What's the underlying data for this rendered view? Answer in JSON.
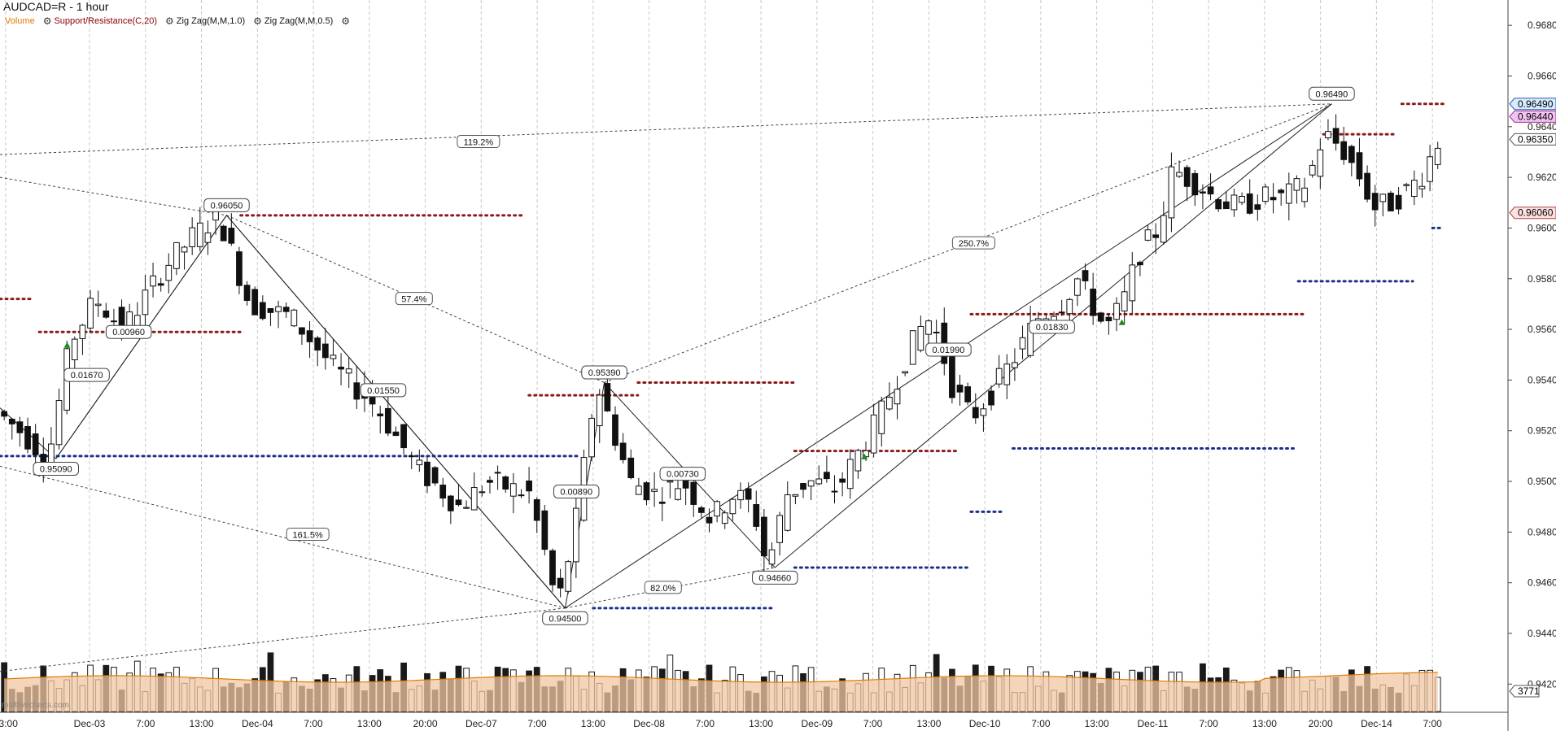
{
  "header": {
    "symbol_title": "AUDCAD=R - 1 hour",
    "indicators": [
      {
        "label": "Volume",
        "color": "#e07b00",
        "icon": "gear-icon"
      },
      {
        "label": "Support/Resistance(C,20)",
        "color": "#8b0000",
        "icon": "gear-icon"
      },
      {
        "label": "Zig Zag(M,M,1.0)",
        "color": "#111111",
        "icon": "gear-icon"
      },
      {
        "label": "Zig Zag(M,M,0.5)",
        "color": "#111111",
        "icon": "gear-icon"
      }
    ],
    "settings_icon": "gear-icon"
  },
  "watermark": "msftlivecharts.com",
  "chart_data": {
    "type": "candlestick",
    "title": "AUDCAD=R - 1 hour",
    "y_axis": {
      "ticks": [
        "0.96800",
        "0.96600",
        "0.96400",
        "0.96200",
        "0.96000",
        "0.95800",
        "0.95600",
        "0.95400",
        "0.95200",
        "0.95000",
        "0.94800",
        "0.94600",
        "0.94400",
        "0.94200"
      ],
      "range": [
        0.9414,
        0.969
      ],
      "price_tags": [
        {
          "value": "0.96490",
          "bg": "#d6ecff",
          "border": "#2a5db0",
          "color": "#000000"
        },
        {
          "value": "0.96440",
          "bg": "#f3c2f3",
          "border": "#a0308f",
          "color": "#000000"
        },
        {
          "value": "0.96350",
          "bg": "#ffffff",
          "border": "#555555",
          "color": "#000000"
        },
        {
          "value": "0.96060",
          "bg": "#fde0e0",
          "border": "#b04040",
          "color": "#000000"
        }
      ],
      "volume_tag": "3771"
    },
    "x_axis": {
      "ticks": [
        {
          "label": "13:00",
          "x": 0
        },
        {
          "label": "Dec-03",
          "x": 3
        },
        {
          "label": "7:00",
          "x": 5
        },
        {
          "label": "13:00",
          "x": 7
        },
        {
          "label": "Dec-04",
          "x": 9
        },
        {
          "label": "7:00",
          "x": 11
        },
        {
          "label": "13:00",
          "x": 13
        },
        {
          "label": "20:00",
          "x": 15
        },
        {
          "label": "Dec-07",
          "x": 17
        },
        {
          "label": "7:00",
          "x": 19
        },
        {
          "label": "13:00",
          "x": 21
        },
        {
          "label": "Dec-08",
          "x": 23
        },
        {
          "label": "7:00",
          "x": 25
        },
        {
          "label": "13:00",
          "x": 27
        },
        {
          "label": "Dec-09",
          "x": 29
        },
        {
          "label": "7:00",
          "x": 31
        },
        {
          "label": "13:00",
          "x": 33
        },
        {
          "label": "Dec-10",
          "x": 35
        },
        {
          "label": "7:00",
          "x": 37
        },
        {
          "label": "13:00",
          "x": 39
        },
        {
          "label": "Dec-11",
          "x": 41
        },
        {
          "label": "7:00",
          "x": 43
        },
        {
          "label": "13:00",
          "x": 45
        },
        {
          "label": "20:00",
          "x": 47
        },
        {
          "label": "Dec-14",
          "x": 49
        },
        {
          "label": "7:00",
          "x": 51
        }
      ],
      "range": [
        -0.2,
        53.7
      ]
    },
    "grid": true,
    "candles_note": "approximate hourly OHLC readings at ~0.28-unit spacing",
    "zigzag_major": [
      {
        "x": 1.8,
        "price": 0.9509,
        "label": "0.95090"
      },
      {
        "x": 7.9,
        "price": 0.9605,
        "label": "0.96050"
      },
      {
        "x": 20.0,
        "price": 0.945,
        "label": "0.94500"
      },
      {
        "x": 47.4,
        "price": 0.9649,
        "label": "0.96490"
      }
    ],
    "zigzag_minor": [
      {
        "x": -0.2,
        "price": 0.9529
      },
      {
        "x": 1.8,
        "price": 0.9509
      },
      {
        "x": 7.9,
        "price": 0.9605
      },
      {
        "x": 20.0,
        "price": 0.945
      },
      {
        "x": 21.4,
        "price": 0.9539,
        "label": "0.95390"
      },
      {
        "x": 27.5,
        "price": 0.9466,
        "label": "0.94660"
      },
      {
        "x": 47.4,
        "price": 0.9649
      }
    ],
    "swing_labels": [
      {
        "x": 2.9,
        "price": 0.9542,
        "text": "0.01670"
      },
      {
        "x": 4.4,
        "price": 0.9559,
        "text": "0.00960"
      },
      {
        "x": 13.5,
        "price": 0.9536,
        "text": "0.01550"
      },
      {
        "x": 20.4,
        "price": 0.9496,
        "text": "0.00890"
      },
      {
        "x": 24.2,
        "price": 0.9503,
        "text": "0.00730"
      },
      {
        "x": 33.7,
        "price": 0.9552,
        "text": "0.01990"
      },
      {
        "x": 37.4,
        "price": 0.9561,
        "text": "0.01830"
      }
    ],
    "retracements": [
      {
        "from": [
          -0.2,
          0.9629
        ],
        "to": [
          47.4,
          0.9649
        ],
        "label": "119.2%",
        "lx": 16.9,
        "lprice": 0.9634
      },
      {
        "from": [
          -0.2,
          0.962
        ],
        "to": [
          7.9,
          0.9605
        ],
        "label": "",
        "lx": null,
        "lprice": null
      },
      {
        "from": [
          7.9,
          0.9605
        ],
        "to": [
          21.4,
          0.9539
        ],
        "label": "57.4%",
        "lx": 14.6,
        "lprice": 0.9572
      },
      {
        "from": [
          -0.2,
          0.9506
        ],
        "to": [
          20.0,
          0.945
        ],
        "label": "161.5%",
        "lx": 10.8,
        "lprice": 0.9479
      },
      {
        "from": [
          20.0,
          0.945
        ],
        "to": [
          27.5,
          0.9466
        ],
        "label": "82.0%",
        "lx": 23.5,
        "lprice": 0.9458
      },
      {
        "from": [
          21.4,
          0.9539
        ],
        "to": [
          47.4,
          0.9649
        ],
        "label": "250.7%",
        "lx": 34.6,
        "lprice": 0.9594
      },
      {
        "from": [
          -0.2,
          0.9425
        ],
        "to": [
          20.0,
          0.945
        ],
        "label": "",
        "lx": null,
        "lprice": null
      }
    ],
    "support_resistance": [
      {
        "x1": -0.2,
        "x2": 1.0,
        "price": 0.9572,
        "color": "#8b1a1a"
      },
      {
        "x1": 1.2,
        "x2": 8.4,
        "price": 0.9559,
        "color": "#8b1a1a"
      },
      {
        "x1": 8.4,
        "x2": 18.5,
        "price": 0.9605,
        "color": "#8b1a1a"
      },
      {
        "x1": -0.2,
        "x2": 20.5,
        "price": 0.951,
        "color": "#1a2f8b"
      },
      {
        "x1": 18.7,
        "x2": 22.6,
        "price": 0.9534,
        "color": "#8b1a1a"
      },
      {
        "x1": 22.6,
        "x2": 28.3,
        "price": 0.9539,
        "color": "#8b1a1a"
      },
      {
        "x1": 21.0,
        "x2": 27.5,
        "price": 0.945,
        "color": "#1a2f8b"
      },
      {
        "x1": 28.2,
        "x2": 34.1,
        "price": 0.9512,
        "color": "#8b1a1a"
      },
      {
        "x1": 28.2,
        "x2": 34.5,
        "price": 0.9466,
        "color": "#1a2f8b"
      },
      {
        "x1": 34.5,
        "x2": 35.7,
        "price": 0.9488,
        "color": "#1a2f8b"
      },
      {
        "x1": 34.5,
        "x2": 46.5,
        "price": 0.9566,
        "color": "#8b1a1a"
      },
      {
        "x1": 36.0,
        "x2": 46.1,
        "price": 0.9513,
        "color": "#1a2f8b"
      },
      {
        "x1": 46.2,
        "x2": 50.3,
        "price": 0.9579,
        "color": "#1a2f8b"
      },
      {
        "x1": 47.1,
        "x2": 49.7,
        "price": 0.9637,
        "color": "#8b1a1a"
      },
      {
        "x1": 49.9,
        "x2": 51.4,
        "price": 0.9649,
        "color": "#8b1a1a"
      },
      {
        "x1": 51.0,
        "x2": 51.4,
        "price": 0.96,
        "color": "#1a2f8b"
      }
    ],
    "signals": [
      {
        "x": 2.2,
        "price": 0.9554,
        "color": "#1e8a1e"
      },
      {
        "x": 30.7,
        "price": 0.951,
        "color": "#1e8a1e"
      },
      {
        "x": 37.9,
        "price": 0.9563,
        "color": "#1e8a1e"
      },
      {
        "x": 39.9,
        "price": 0.9563,
        "color": "#1e8a1e"
      }
    ],
    "volume": {
      "series_color": "#f1c7a3",
      "line_color": "#e07b00"
    }
  }
}
